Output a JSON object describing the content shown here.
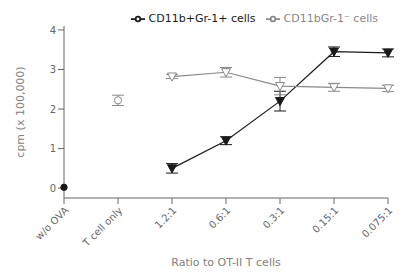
{
  "chart_data": {
    "type": "line",
    "xlabel": "Ratio to OT-II T cells",
    "ylabel": "cpm (x 100,000)",
    "categories": [
      "w/o OVA",
      "T cell only",
      "1.2:1",
      "0.6:1",
      "0.3:1",
      "0.15:1",
      "0.075:1"
    ],
    "series": [
      {
        "name": "CD11b+Gr-1+ cells",
        "color": "#1a1a1a",
        "marker": "triangle_down_filled",
        "line_style": "solid",
        "values": [
          null,
          null,
          0.5,
          1.2,
          2.2,
          3.45,
          3.42
        ],
        "errors": [
          null,
          null,
          0.12,
          0.1,
          0.25,
          0.12,
          0.1
        ]
      },
      {
        "name": "CD11bGr-1⁻ cells",
        "color": "#888888",
        "marker": "triangle_down_open",
        "line_style": "solid",
        "values": [
          null,
          null,
          2.82,
          2.93,
          2.58,
          2.55,
          2.52
        ],
        "errors": [
          null,
          null,
          0.05,
          0.12,
          0.22,
          0.1,
          0.08
        ]
      },
      {
        "color": "#1a1a1a",
        "marker": "circle_filled",
        "line_style": "none",
        "values": [
          0.02,
          null,
          null,
          null,
          null,
          null,
          null
        ]
      },
      {
        "color": "#888888",
        "marker": "circle_open",
        "line_style": "none",
        "values": [
          null,
          2.22,
          null,
          null,
          null,
          null,
          null
        ],
        "errors": [
          null,
          0.13,
          null,
          null,
          null,
          null,
          null
        ]
      }
    ],
    "ylim": [
      -0.25,
      4.1
    ],
    "yticks": [
      0,
      1,
      2,
      3,
      4
    ],
    "grid": false,
    "legend": "upper right"
  }
}
